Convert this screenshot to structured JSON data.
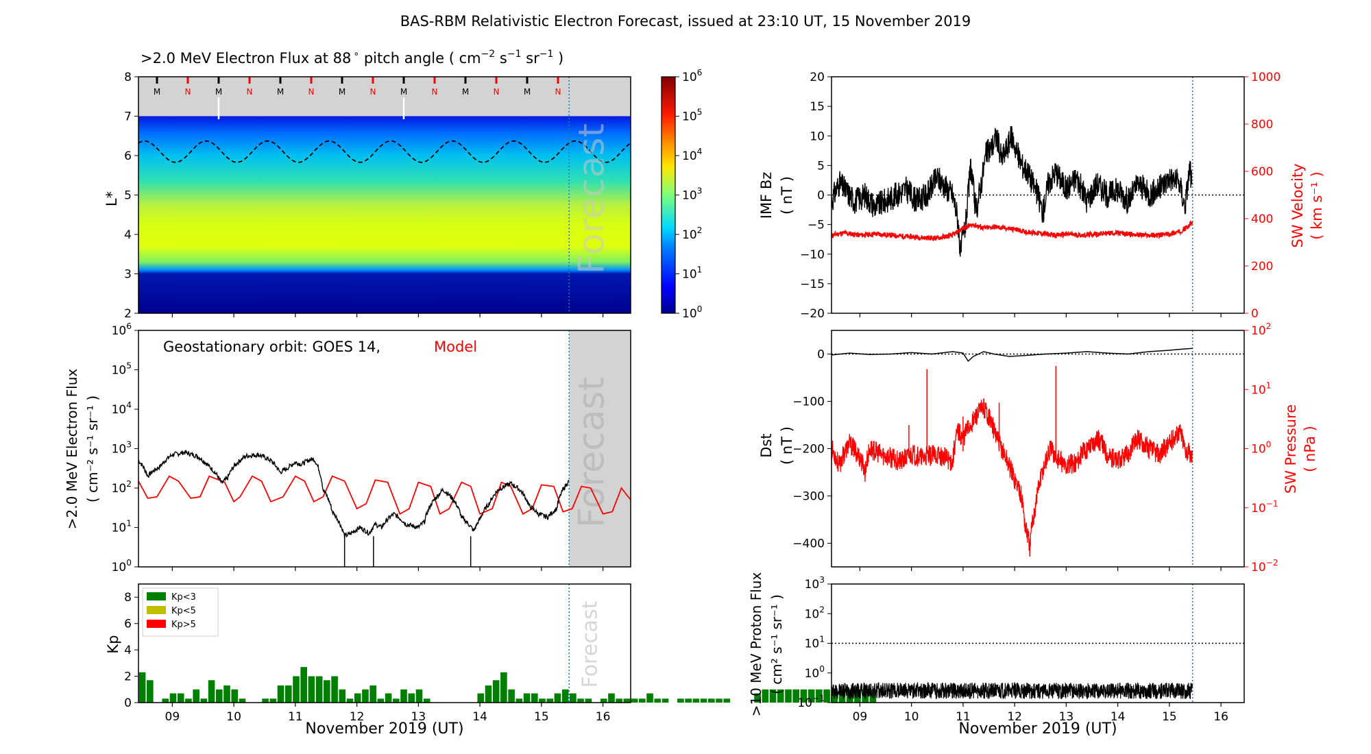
{
  "figure": {
    "title": "BAS-RBM Relativistic Electron Forecast, issued at 23:10 UT, 15 November 2019"
  },
  "common": {
    "xlabel": "November 2019 (UT)",
    "x_ticks": [
      "09",
      "10",
      "11",
      "12",
      "13",
      "14",
      "15",
      "16"
    ],
    "x_range_days": [
      8.45,
      16.45
    ],
    "forecast_start_day": 15.45
  },
  "colors": {
    "data_black": "#000000",
    "model_red": "#ff0000",
    "kp_low": "#008000",
    "kp_mid": "#bfbf00",
    "kp_high": "#ff0000",
    "forecast_shade": "#d3d3d3",
    "forecast_line": "#1f77b4"
  },
  "chart_data": [
    {
      "id": "lstar_flux",
      "type": "heatmap",
      "title": ">2.0 MeV Electron Flux at 88$^\\circ$ pitch angle ( cm$^{-2}$ s$^{-1}$ sr$^{-1}$ )",
      "title_main": ">2.0 MeV Electron Flux at 88",
      "title_unit": "pitch angle ( cm",
      "title_exp1": "−2",
      "title_s": "s",
      "title_exp2": "−1",
      "title_sr": "sr",
      "title_exp3": "−1",
      "title_close": ")",
      "ylabel": "L*",
      "ylim": [
        2,
        8
      ],
      "y_ticks": [
        "2",
        "3",
        "4",
        "5",
        "6",
        "7",
        "8"
      ],
      "watermark": "Forecast",
      "colorbar": {
        "scale": "log",
        "min": 1,
        "max": 1000000,
        "ticks": [
          "10",
          "10",
          "10",
          "10",
          "10",
          "10",
          "10"
        ],
        "tick_exps": [
          "0",
          "1",
          "2",
          "3",
          "4",
          "5",
          "6"
        ]
      },
      "mn_markers": [
        "M",
        "N",
        "M",
        "N",
        "M",
        "N",
        "M",
        "N",
        "M",
        "N",
        "M",
        "N",
        "M",
        "N"
      ],
      "plasmapause_mean": 6.1,
      "plasmapause_amplitude": 0.27
    },
    {
      "id": "geo_flux",
      "type": "line",
      "annotation_black": "Geostationary orbit:   GOES 14,",
      "annotation_red": "Model",
      "ylabel_line1": ">2.0 MeV Electron Flux",
      "ylabel_line2": "( cm⁻² s⁻¹ sr⁻¹ )",
      "yscale": "log",
      "ylim": [
        1,
        1000000
      ],
      "y_ticks": [
        "10",
        "10",
        "10",
        "10",
        "10",
        "10",
        "10"
      ],
      "y_tick_exps": [
        "0",
        "1",
        "2",
        "3",
        "4",
        "5",
        "6"
      ],
      "watermark": "Forecast",
      "series": [
        {
          "name": "GOES 14",
          "color": "#000000",
          "x": [
            8.45,
            8.6,
            8.8,
            9.0,
            9.2,
            9.4,
            9.6,
            9.8,
            9.9,
            10.0,
            10.2,
            10.4,
            10.6,
            10.75,
            10.85,
            11.0,
            11.1,
            11.2,
            11.3,
            11.45,
            11.6,
            11.75,
            11.8,
            11.9,
            12.05,
            12.2,
            12.3,
            12.4,
            12.6,
            12.8,
            13.0,
            13.1,
            13.3,
            13.4,
            13.55,
            13.7,
            13.9,
            14.0,
            14.15,
            14.3,
            14.5,
            14.65,
            14.8,
            14.95,
            15.1,
            15.25,
            15.35,
            15.45
          ],
          "y": [
            500,
            200,
            350,
            700,
            800,
            650,
            350,
            130,
            180,
            350,
            650,
            700,
            500,
            250,
            300,
            450,
            400,
            500,
            550,
            90,
            25,
            10,
            6,
            7,
            10,
            7,
            12,
            10,
            22,
            12,
            10,
            14,
            60,
            90,
            55,
            18,
            8,
            16,
            40,
            90,
            130,
            90,
            35,
            22,
            18,
            30,
            90,
            150
          ]
        },
        {
          "name": "Model",
          "color": "#ff0000",
          "x": [
            8.45,
            8.6,
            8.75,
            8.95,
            9.1,
            9.3,
            9.45,
            9.6,
            9.85,
            10.0,
            10.1,
            10.3,
            10.45,
            10.6,
            10.8,
            11.0,
            11.15,
            11.3,
            11.45,
            11.6,
            11.8,
            12.0,
            12.15,
            12.3,
            12.5,
            12.7,
            12.85,
            13.0,
            13.2,
            13.35,
            13.5,
            13.7,
            13.85,
            14.0,
            14.2,
            14.35,
            14.5,
            14.7,
            14.85,
            15.0,
            15.2,
            15.35,
            15.5,
            15.65,
            15.8,
            16.0,
            16.15,
            16.3,
            16.45
          ],
          "y": [
            150,
            55,
            60,
            200,
            150,
            55,
            60,
            200,
            140,
            45,
            60,
            200,
            150,
            45,
            60,
            200,
            150,
            45,
            60,
            200,
            150,
            30,
            40,
            160,
            140,
            22,
            30,
            140,
            110,
            22,
            30,
            140,
            110,
            22,
            30,
            140,
            110,
            22,
            30,
            120,
            110,
            25,
            30,
            110,
            100,
            22,
            25,
            100,
            50
          ]
        }
      ]
    },
    {
      "id": "kp",
      "type": "bar",
      "ylabel": "Kp",
      "ylim": [
        0,
        9
      ],
      "y_ticks": [
        "0",
        "2",
        "4",
        "6",
        "8"
      ],
      "watermark": "Forecast",
      "legend": [
        "Kp<3",
        "Kp<5",
        "Kp>5"
      ],
      "legend_placement": "top-left",
      "bar_width_days": 0.125,
      "start_day": 8.45,
      "values": [
        2.3,
        1.7,
        0.0,
        0.3,
        0.7,
        0.7,
        0.3,
        1.0,
        0.3,
        1.7,
        1.0,
        1.3,
        1.0,
        0.3,
        0.0,
        0.0,
        0.3,
        0.3,
        1.3,
        1.3,
        2.0,
        2.7,
        2.0,
        2.0,
        1.7,
        2.0,
        1.0,
        0.3,
        0.7,
        1.0,
        1.3,
        0.3,
        0.7,
        0.3,
        1.0,
        0.7,
        1.0,
        0.3,
        0.0,
        0.0,
        0.0,
        0.0,
        0.0,
        0.0,
        0.7,
        1.3,
        1.7,
        2.3,
        1.0,
        0.3,
        0.7,
        0.7,
        0.3,
        0.3,
        0.7,
        1.0,
        0.7,
        0.3,
        0.3,
        0.0,
        0.3,
        0.7,
        0.3,
        0.3,
        0.3,
        0.3,
        0.7,
        0.3,
        0.3,
        0.0,
        0.3,
        0.3,
        0.3,
        0.3,
        0.3,
        0.3,
        0.3,
        0.0,
        0.0,
        0.0,
        0.7,
        1.0,
        1.0,
        1.0,
        1.0,
        1.0,
        1.0,
        1.0,
        1.0,
        1.0,
        1.0,
        1.0,
        1.0,
        1.0,
        1.0,
        1.0
      ]
    },
    {
      "id": "imf_sw",
      "type": "line",
      "ylabel_line1": "IMF Bz",
      "ylabel_line2": "( nT )",
      "ylim": [
        -20,
        20
      ],
      "y_ticks": [
        "−20",
        "−15",
        "−10",
        "−5",
        "0",
        "5",
        "10",
        "15",
        "20"
      ],
      "ylabel_right_line1": "SW Velocity",
      "ylabel_right_line2": "( km s⁻¹ )",
      "ylim_right": [
        0,
        1000
      ],
      "y_ticks_right": [
        "0",
        "200",
        "400",
        "600",
        "800",
        "1000"
      ],
      "series": [
        {
          "name": "IMF Bz",
          "color": "#000000",
          "x": [
            8.45,
            8.6,
            8.7,
            8.9,
            9.1,
            9.3,
            9.5,
            9.7,
            9.9,
            10.1,
            10.3,
            10.5,
            10.7,
            10.8,
            10.9,
            10.95,
            11.0,
            11.05,
            11.15,
            11.25,
            11.35,
            11.45,
            11.55,
            11.65,
            11.75,
            11.85,
            11.95,
            12.05,
            12.15,
            12.25,
            12.35,
            12.45,
            12.55,
            12.65,
            12.8,
            13.0,
            13.2,
            13.4,
            13.6,
            13.8,
            14.0,
            14.2,
            14.4,
            14.6,
            14.8,
            15.0,
            15.2,
            15.3,
            15.4,
            15.45
          ],
          "y": [
            -1,
            2,
            1,
            -1,
            0,
            -2,
            -1,
            0,
            1,
            -1,
            0,
            3,
            1,
            0,
            -4,
            -10,
            -7,
            -5,
            5,
            -3,
            2,
            7,
            8,
            10,
            6,
            8,
            10,
            7,
            5,
            4,
            2,
            0,
            -3,
            2,
            4,
            1,
            3,
            -1,
            2,
            0,
            1,
            -1,
            2,
            0,
            1,
            3,
            2,
            -2,
            5,
            0
          ]
        },
        {
          "name": "SW Velocity",
          "color": "#ff0000",
          "x": [
            8.45,
            8.7,
            9.0,
            9.3,
            9.6,
            9.9,
            10.2,
            10.5,
            10.8,
            11.0,
            11.2,
            11.4,
            11.6,
            11.8,
            12.0,
            12.2,
            12.4,
            12.6,
            12.8,
            13.0,
            13.3,
            13.6,
            13.9,
            14.2,
            14.5,
            14.8,
            15.0,
            15.2,
            15.35,
            15.45
          ],
          "y": [
            330,
            340,
            330,
            335,
            330,
            325,
            320,
            318,
            330,
            360,
            375,
            360,
            365,
            360,
            355,
            345,
            340,
            335,
            330,
            335,
            330,
            335,
            340,
            335,
            330,
            330,
            335,
            345,
            365,
            385
          ]
        }
      ]
    },
    {
      "id": "dst_pressure",
      "type": "line",
      "ylabel_line1": "Dst",
      "ylabel_line2": "( nT )",
      "ylim": [
        -450,
        50
      ],
      "y_ticks": [
        "−400",
        "−300",
        "−200",
        "−100",
        "0"
      ],
      "ylabel_right_line1": "SW Pressure",
      "ylabel_right_line2": "( nPa )",
      "yscale_right": "log",
      "ylim_right": [
        0.01,
        100
      ],
      "y_ticks_right": [
        "10",
        "10",
        "10",
        "10",
        "10"
      ],
      "y_tick_exps_right": [
        "−2",
        "−1",
        "0",
        "1",
        "2"
      ],
      "series": [
        {
          "name": "Dst",
          "color": "#000000",
          "x": [
            8.45,
            8.8,
            9.2,
            9.6,
            10.0,
            10.4,
            10.8,
            11.0,
            11.1,
            11.2,
            11.4,
            11.6,
            11.9,
            12.2,
            12.6,
            13.0,
            13.4,
            13.8,
            14.2,
            14.6,
            15.0,
            15.2,
            15.45
          ],
          "y": [
            -2,
            2,
            -1,
            0,
            3,
            0,
            5,
            2,
            -15,
            -5,
            5,
            0,
            -5,
            -3,
            0,
            2,
            5,
            2,
            0,
            5,
            8,
            10,
            12
          ]
        },
        {
          "name": "SW Pressure",
          "color": "#ff0000",
          "x": [
            8.45,
            8.6,
            8.8,
            9.0,
            9.1,
            9.2,
            9.4,
            9.6,
            9.8,
            10.0,
            10.2,
            10.5,
            10.8,
            10.9,
            11.0,
            11.2,
            11.4,
            11.5,
            11.6,
            11.7,
            11.8,
            11.9,
            12.0,
            12.1,
            12.2,
            12.3,
            12.4,
            12.5,
            12.6,
            12.7,
            12.8,
            13.0,
            13.2,
            13.4,
            13.6,
            13.8,
            14.0,
            14.2,
            14.4,
            14.6,
            14.8,
            15.0,
            15.2,
            15.3,
            15.45
          ],
          "y": [
            1.0,
            0.5,
            1.2,
            0.7,
            0.4,
            1.0,
            0.8,
            0.7,
            0.6,
            0.8,
            0.7,
            0.8,
            0.6,
            2.0,
            1.5,
            3.0,
            5.0,
            3.5,
            2.0,
            1.2,
            0.8,
            0.5,
            0.3,
            0.2,
            0.05,
            0.02,
            0.1,
            0.3,
            0.6,
            1.0,
            0.7,
            0.5,
            0.6,
            1.0,
            1.5,
            0.8,
            0.6,
            0.8,
            1.5,
            1.0,
            0.8,
            1.2,
            2.0,
            1.0,
            0.7
          ]
        }
      ]
    },
    {
      "id": "proton_flux",
      "type": "line",
      "ylabel_line1": ">10 MeV Proton Flux",
      "ylabel_line2": "( cm² s⁻¹ sr⁻¹ )",
      "yscale": "log",
      "ylim": [
        0.1,
        1000
      ],
      "y_ticks": [
        "10",
        "10",
        "10",
        "10",
        "10"
      ],
      "y_tick_exps": [
        "−1",
        "0",
        "1",
        "2",
        "3"
      ],
      "threshold": 10,
      "series": [
        {
          "name": ">10 MeV Proton Flux",
          "color": "#000000",
          "x": [
            8.45,
            15.45
          ],
          "y": [
            0.25,
            0.25
          ]
        }
      ]
    }
  ]
}
